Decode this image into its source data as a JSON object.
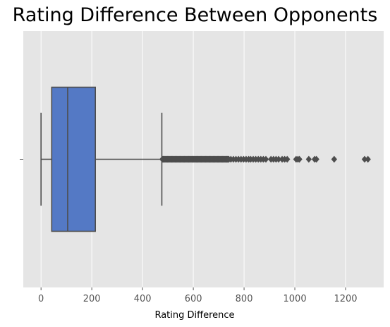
{
  "chart_data": {
    "type": "boxplot",
    "title": "Rating Difference Between Opponents",
    "xlabel": "Rating Difference",
    "ylabel": "",
    "xlim": [
      -70,
      1350
    ],
    "xticks": [
      0,
      200,
      400,
      600,
      800,
      1000,
      1200
    ],
    "grid": true,
    "orientation": "horizontal",
    "box": {
      "whisker_low": 0,
      "q1": 42,
      "median": 105,
      "q3": 214,
      "whisker_high": 476,
      "color": "#5479c5"
    },
    "outlier_dense_range": [
      478,
      740
    ],
    "outliers": [
      748,
      758,
      768,
      778,
      788,
      798,
      808,
      818,
      826,
      836,
      846,
      856,
      866,
      876,
      886,
      906,
      916,
      926,
      936,
      950,
      960,
      970,
      1005,
      1012,
      1018,
      1055,
      1078,
      1085,
      1155,
      1275,
      1288
    ]
  }
}
